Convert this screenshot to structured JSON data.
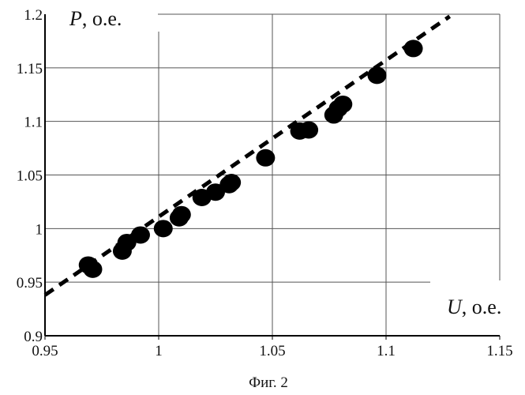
{
  "chart_data": {
    "type": "scatter",
    "xlabel_var": "U",
    "xlabel_unit": ", о.е.",
    "ylabel_var": "P",
    "ylabel_unit": ", о.е.",
    "caption": "Фиг. 2",
    "xlim": [
      0.95,
      1.15
    ],
    "ylim": [
      0.9,
      1.2
    ],
    "xticks": [
      {
        "value": 0.95,
        "label": "0.95"
      },
      {
        "value": 1.0,
        "label": "1"
      },
      {
        "value": 1.05,
        "label": "1.05"
      },
      {
        "value": 1.1,
        "label": "1.1"
      },
      {
        "value": 1.15,
        "label": "1.15"
      }
    ],
    "yticks": [
      {
        "value": 0.9,
        "label": "0.9"
      },
      {
        "value": 0.95,
        "label": "0.95"
      },
      {
        "value": 1.0,
        "label": "1"
      },
      {
        "value": 1.05,
        "label": "1.05"
      },
      {
        "value": 1.1,
        "label": "1.1"
      },
      {
        "value": 1.15,
        "label": "1.15"
      },
      {
        "value": 1.2,
        "label": "1.2"
      }
    ],
    "grid": true,
    "series": [
      {
        "kind": "points",
        "color": "#000000",
        "points": [
          {
            "x": 0.969,
            "y": 0.966
          },
          {
            "x": 0.971,
            "y": 0.962
          },
          {
            "x": 0.984,
            "y": 0.979
          },
          {
            "x": 0.986,
            "y": 0.987
          },
          {
            "x": 0.992,
            "y": 0.994
          },
          {
            "x": 1.002,
            "y": 1.0
          },
          {
            "x": 1.009,
            "y": 1.01
          },
          {
            "x": 1.01,
            "y": 1.013
          },
          {
            "x": 1.019,
            "y": 1.029
          },
          {
            "x": 1.025,
            "y": 1.034
          },
          {
            "x": 1.031,
            "y": 1.041
          },
          {
            "x": 1.032,
            "y": 1.043
          },
          {
            "x": 1.047,
            "y": 1.066
          },
          {
            "x": 1.062,
            "y": 1.091
          },
          {
            "x": 1.066,
            "y": 1.092
          },
          {
            "x": 1.077,
            "y": 1.106
          },
          {
            "x": 1.079,
            "y": 1.112
          },
          {
            "x": 1.081,
            "y": 1.116
          },
          {
            "x": 1.096,
            "y": 1.143
          },
          {
            "x": 1.112,
            "y": 1.168
          }
        ]
      },
      {
        "kind": "fit-line",
        "color": "#000000",
        "dashed": true,
        "points": [
          {
            "x": 0.95,
            "y": 0.938
          },
          {
            "x": 1.128,
            "y": 1.198
          }
        ]
      }
    ]
  }
}
